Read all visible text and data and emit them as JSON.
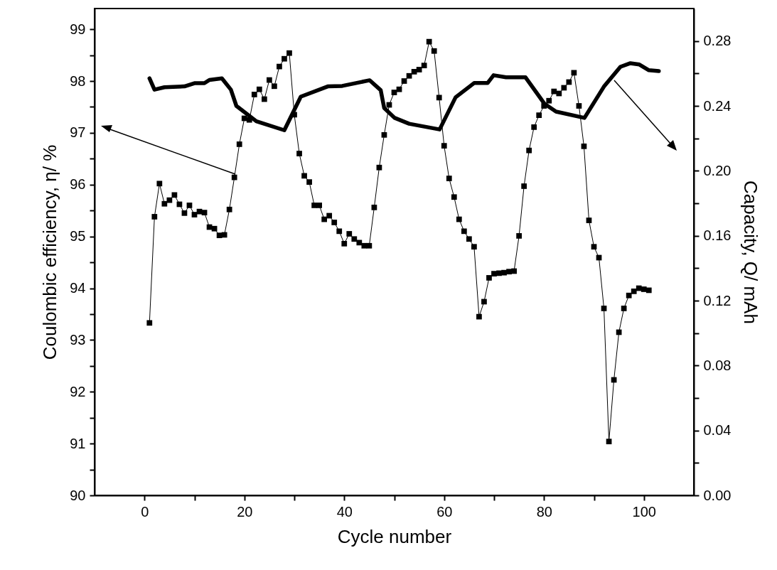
{
  "chart_data": {
    "type": "line",
    "xlabel": "Cycle number",
    "ylabel": "Coulombic efficiency, η/ %",
    "y2label": "Capacity, Q/ mAh",
    "xlim": [
      -10,
      110
    ],
    "xticks": [
      0,
      {
        "value": 10,
        "label": null
      },
      20,
      {
        "value": 30,
        "label": null
      },
      40,
      {
        "value": 50,
        "label": null
      },
      60,
      {
        "value": 70,
        "label": null
      },
      80,
      {
        "value": 90,
        "label": null
      },
      100
    ],
    "ylim": [
      90,
      99.4
    ],
    "yticks": [
      90,
      {
        "value": 90.5,
        "label": null
      },
      91,
      {
        "value": 91.5,
        "label": null
      },
      92,
      {
        "value": 92.5,
        "label": null
      },
      93,
      {
        "value": 93.5,
        "label": null
      },
      94,
      {
        "value": 94.5,
        "label": null
      },
      95,
      {
        "value": 95.5,
        "label": null
      },
      96,
      {
        "value": 96.5,
        "label": null
      },
      97,
      {
        "value": 97.5,
        "label": null
      },
      98,
      {
        "value": 98.5,
        "label": null
      },
      99
    ],
    "y2lim": [
      0,
      0.3
    ],
    "y2ticks": [
      {
        "value": 0,
        "label": "0.00"
      },
      {
        "value": 0.02,
        "label": null
      },
      {
        "value": 0.04,
        "label": "0.04"
      },
      {
        "value": 0.06,
        "label": null
      },
      {
        "value": 0.08,
        "label": "0.08"
      },
      {
        "value": 0.1,
        "label": null
      },
      {
        "value": 0.12,
        "label": "0.12"
      },
      {
        "value": 0.14,
        "label": null
      },
      {
        "value": 0.16,
        "label": "0.16"
      },
      {
        "value": 0.18,
        "label": null
      },
      {
        "value": 0.2,
        "label": "0.20"
      },
      {
        "value": 0.22,
        "label": null
      },
      {
        "value": 0.24,
        "label": "0.24"
      },
      {
        "value": 0.26,
        "label": null
      },
      {
        "value": 0.28,
        "label": "0.28"
      }
    ],
    "grid": false,
    "line_style": "solid",
    "series": [
      {
        "color": "#000000",
        "marker": "square",
        "x": [
          1,
          2,
          3,
          4,
          5,
          6,
          7,
          8,
          9,
          10,
          11,
          12,
          13,
          14,
          15,
          16,
          17,
          18,
          19,
          20,
          21,
          22,
          23,
          24,
          25,
          26,
          27,
          28,
          29,
          30,
          31,
          32,
          33,
          34,
          35,
          36,
          37,
          38,
          39,
          40,
          41,
          42,
          43,
          44,
          45,
          46,
          47,
          48,
          49,
          50,
          51,
          52,
          53,
          54,
          55,
          56,
          57,
          58,
          59,
          60,
          61,
          62,
          63,
          64,
          65,
          66,
          67,
          68,
          69,
          70,
          71,
          72,
          73,
          74,
          75,
          76,
          77,
          78,
          79,
          80,
          81,
          82,
          83,
          84,
          85,
          86,
          87,
          88,
          89,
          90,
          91,
          92,
          93,
          94,
          95,
          96,
          97,
          98,
          99,
          100,
          101
        ],
        "values": [
          93.33,
          95.38,
          96.02,
          95.63,
          95.7,
          95.8,
          95.62,
          95.45,
          95.6,
          95.42,
          95.48,
          95.46,
          95.18,
          95.15,
          95.02,
          95.03,
          95.52,
          96.14,
          96.78,
          97.28,
          97.25,
          97.74,
          97.84,
          97.65,
          98.02,
          97.9,
          98.28,
          98.43,
          98.54,
          97.35,
          96.6,
          96.17,
          96.05,
          95.6,
          95.6,
          95.33,
          95.4,
          95.27,
          95.1,
          94.86,
          95.05,
          94.95,
          94.88,
          94.82,
          94.82,
          95.56,
          96.33,
          96.96,
          97.54,
          97.78,
          97.84,
          98.0,
          98.1,
          98.18,
          98.22,
          98.3,
          98.76,
          98.58,
          97.68,
          96.75,
          96.12,
          95.76,
          95.33,
          95.1,
          94.95,
          94.8,
          93.45,
          93.74,
          94.2,
          94.28,
          94.29,
          94.3,
          94.32,
          94.33,
          95.01,
          95.97,
          96.66,
          97.11,
          97.34,
          97.52,
          97.62,
          97.8,
          97.76,
          97.87,
          97.98,
          98.16,
          97.52,
          96.74,
          95.31,
          94.8,
          94.59,
          93.61,
          91.04,
          92.23,
          93.15,
          93.61,
          93.86,
          93.94,
          94.0,
          93.98,
          93.96
        ]
      },
      {
        "color": "#000000",
        "marker": "none",
        "axis": "y2",
        "x": [
          1,
          2,
          4,
          8,
          10,
          12,
          13,
          15.5,
          17.3,
          18.4,
          22.4,
          28,
          31.3,
          36.7,
          39.6,
          45.1,
          47.3,
          48,
          50.1,
          53,
          59.1,
          62.3,
          66,
          68.7,
          69.9,
          72.4,
          76.3,
          80.1,
          82.4,
          88.1,
          92,
          95.3,
          97.3,
          99.1,
          101,
          103
        ],
        "values": [
          0.257,
          0.25,
          0.2515,
          0.252,
          0.254,
          0.254,
          0.256,
          0.257,
          0.25,
          0.24,
          0.2305,
          0.225,
          0.2457,
          0.252,
          0.2523,
          0.2558,
          0.2497,
          0.2387,
          0.2326,
          0.229,
          0.2255,
          0.2453,
          0.2541,
          0.2541,
          0.2589,
          0.2576,
          0.2576,
          0.2413,
          0.2365,
          0.2326,
          0.2519,
          0.2641,
          0.2663,
          0.2655,
          0.262,
          0.2615
        ]
      }
    ]
  }
}
